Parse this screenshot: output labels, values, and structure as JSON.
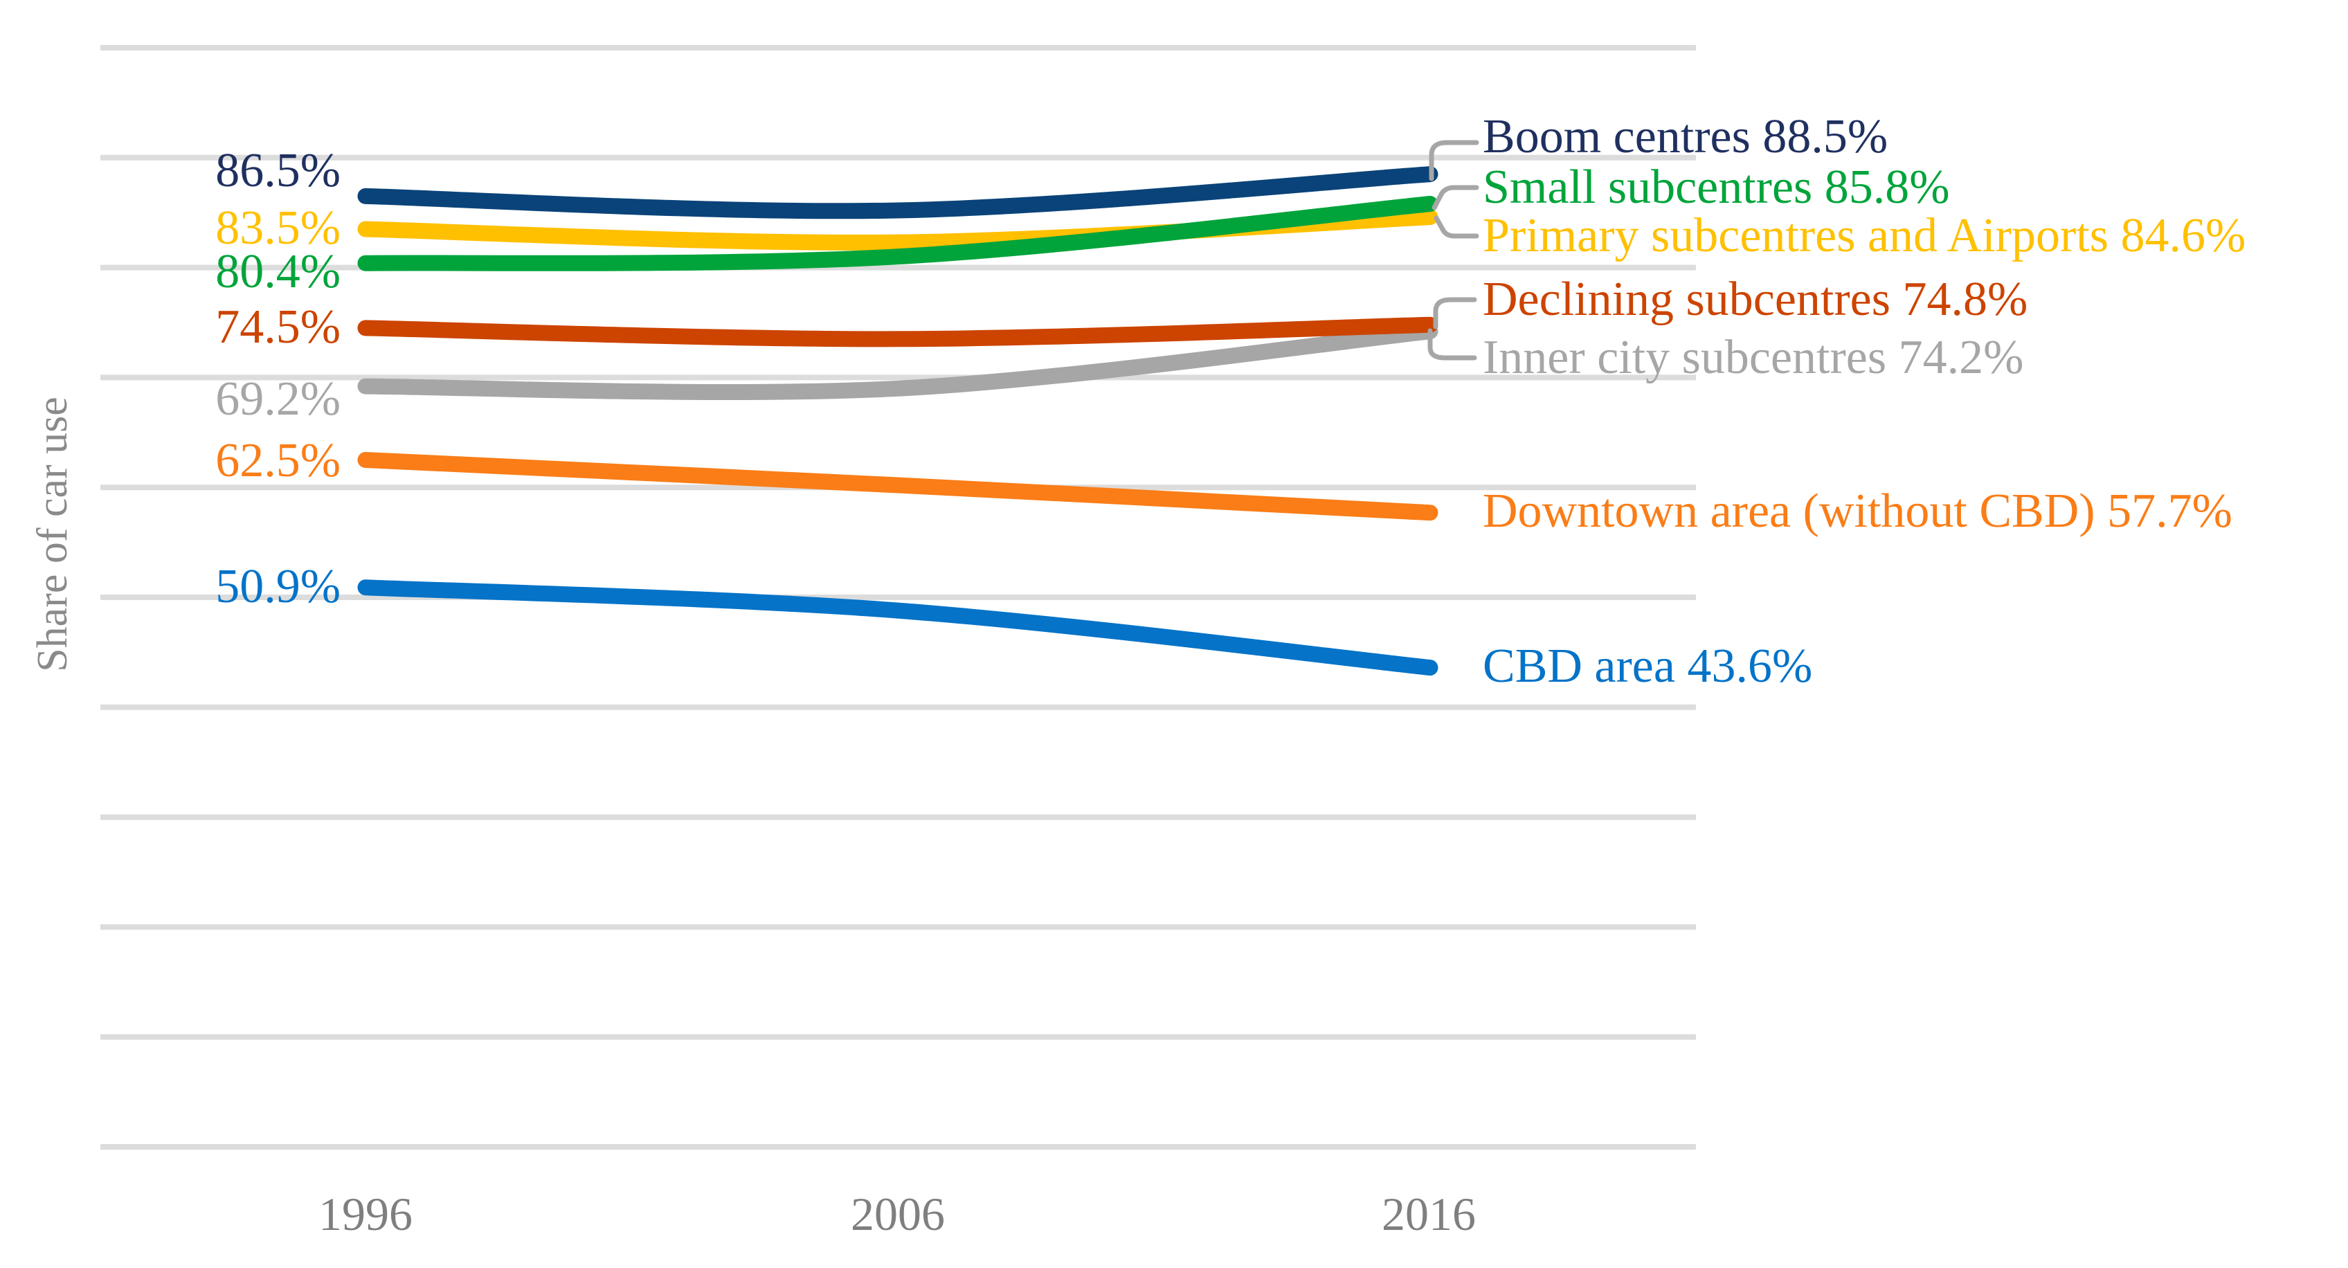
{
  "figure": {
    "background": "#FFFFFF"
  },
  "y_axis": {
    "title": "Share of car use",
    "color": "#8A8A8A"
  },
  "x_axis": {
    "ticks": [
      "1996",
      "2006",
      "2016"
    ],
    "color": "#7F7F7F"
  },
  "grid": {
    "color": "#DCDCDC"
  },
  "leader_lines": {
    "color": "#A6A6A6"
  },
  "chart_data": {
    "type": "line",
    "title": "",
    "x": [
      1996,
      2006,
      2016
    ],
    "xlabel": "",
    "ylabel": "Share of car use",
    "ylim": [
      0,
      100
    ],
    "grid_step": 10,
    "grid_on": true,
    "legend_position": "direct line labels (start values left, series names right)",
    "series": [
      {
        "name": "Boom centres",
        "color": "#0A4379",
        "label_color": "#1F3060",
        "values": [
          86.5,
          85.2,
          88.5
        ],
        "start_label": "86.5%",
        "end_label": "Boom centres 88.5%"
      },
      {
        "name": "Primary subcentres and Airports",
        "color": "#FFC000",
        "values": [
          83.5,
          82.3,
          84.6
        ],
        "start_label": "83.5%",
        "end_label": "Primary subcentres and Airports 84.6%"
      },
      {
        "name": "Small subcentres",
        "color": "#00A43B",
        "values": [
          80.4,
          81.0,
          85.8
        ],
        "start_label": "80.4%",
        "end_label": "Small subcentres 85.8%"
      },
      {
        "name": "Declining subcentres",
        "color": "#CC4400",
        "values": [
          74.5,
          73.5,
          74.8
        ],
        "start_label": "74.5%",
        "end_label": "Declining subcentres 74.8%"
      },
      {
        "name": "Inner city subcentres",
        "color": "#A6A6A6",
        "values": [
          69.2,
          69.0,
          74.2
        ],
        "start_label": "69.2%",
        "end_label": "Inner city subcentres 74.2%"
      },
      {
        "name": "Downtown area (without CBD)",
        "color": "#FA7D17",
        "values": [
          62.5,
          60.2,
          57.7
        ],
        "start_label": "62.5%",
        "end_label": "Downtown area (without CBD) 57.7%"
      },
      {
        "name": "CBD area",
        "color": "#0473C8",
        "values": [
          50.9,
          48.8,
          43.6
        ],
        "start_label": "50.9%",
        "end_label": "CBD area 43.6%"
      }
    ]
  }
}
